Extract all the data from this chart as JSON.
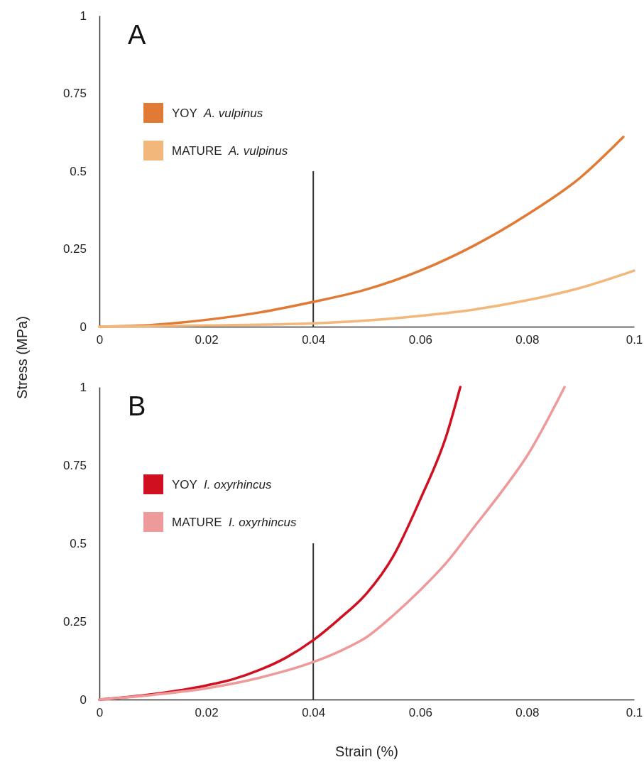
{
  "chart_data": [
    {
      "type": "line",
      "title": "A",
      "ylabel": "Stress (MPa)",
      "xlim": [
        0,
        0.1
      ],
      "ylim": [
        0,
        1
      ],
      "xticks": [
        0,
        0.02,
        0.04,
        0.06,
        0.08,
        0.1
      ],
      "yticks": [
        0,
        0.25,
        0.5,
        0.75,
        1
      ],
      "legend": "top left",
      "ref_lines": [
        {
          "axis": "x",
          "value": 0.04,
          "color": "#333333"
        }
      ],
      "series": [
        {
          "name": "YOY  A. vulpinus",
          "color": "#e07a35",
          "x": [
            0,
            0.01,
            0.02,
            0.03,
            0.04,
            0.05,
            0.06,
            0.07,
            0.08,
            0.09,
            0.098
          ],
          "values": [
            0,
            0.006,
            0.022,
            0.046,
            0.08,
            0.12,
            0.18,
            0.26,
            0.36,
            0.48,
            0.61
          ]
        },
        {
          "name": "MATURE  A. vulpinus",
          "color": "#f2b77a",
          "x": [
            0,
            0.02,
            0.04,
            0.05,
            0.06,
            0.07,
            0.08,
            0.09,
            0.1
          ],
          "values": [
            0,
            0.004,
            0.011,
            0.02,
            0.035,
            0.055,
            0.085,
            0.125,
            0.18
          ]
        }
      ]
    },
    {
      "type": "line",
      "title": "B",
      "xlabel": "Strain (%)",
      "xlim": [
        0,
        0.1
      ],
      "ylim": [
        0,
        1
      ],
      "xticks": [
        0,
        0.02,
        0.04,
        0.06,
        0.08,
        0.1
      ],
      "yticks": [
        0,
        0.25,
        0.5,
        0.75,
        1
      ],
      "legend": "top left",
      "ref_lines": [
        {
          "axis": "x",
          "value": 0.04,
          "color": "#333333"
        }
      ],
      "series": [
        {
          "name": "YOY  I. oxyrhincus",
          "color": "#d01020",
          "x": [
            0,
            0.01,
            0.02,
            0.025,
            0.03,
            0.035,
            0.04,
            0.045,
            0.05,
            0.055,
            0.06,
            0.065,
            0.0675
          ],
          "values": [
            0,
            0.017,
            0.045,
            0.065,
            0.095,
            0.135,
            0.19,
            0.26,
            0.34,
            0.46,
            0.64,
            0.85,
            1
          ]
        },
        {
          "name": "MATURE  I. oxyrhincus",
          "color": "#ee9a9a",
          "x": [
            0,
            0.01,
            0.02,
            0.03,
            0.04,
            0.045,
            0.05,
            0.055,
            0.06,
            0.065,
            0.07,
            0.075,
            0.08,
            0.087
          ],
          "values": [
            0,
            0.015,
            0.036,
            0.07,
            0.12,
            0.155,
            0.2,
            0.27,
            0.35,
            0.44,
            0.55,
            0.66,
            0.78,
            1
          ]
        }
      ]
    }
  ]
}
